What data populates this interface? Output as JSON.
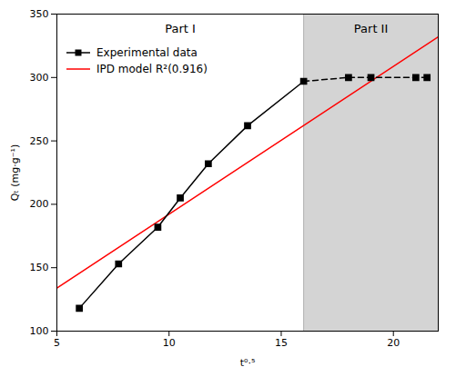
{
  "chart_data": {
    "type": "line",
    "xlabel": "t⁰·⁵",
    "ylabel": "Qₜ (mg·g⁻¹)",
    "xlim": [
      5,
      22
    ],
    "ylim": [
      100,
      350
    ],
    "xticks": [
      5,
      10,
      15,
      20
    ],
    "yticks": [
      100,
      150,
      200,
      250,
      300,
      350
    ],
    "grid": false,
    "legend": "upper left",
    "series": [
      {
        "name": "Experimental data",
        "color": "black",
        "marker": "square",
        "line_style": [
          "solid",
          "dashed"
        ],
        "x": [
          6,
          7.75,
          9.5,
          10.5,
          11.75,
          13.5,
          16,
          18,
          19,
          21,
          21.5
        ],
        "values": [
          118,
          153,
          182,
          205,
          232,
          262,
          297,
          300,
          300,
          300,
          300
        ]
      },
      {
        "name": "IPD model R²(0.916)",
        "color": "red",
        "line_style": "solid",
        "x": [
          5,
          22
        ],
        "values": [
          134,
          332
        ]
      }
    ],
    "regions": [
      {
        "x0": 5,
        "x1": 16,
        "color": "white",
        "label": "Part I",
        "label_x": 10.5,
        "label_y": 342
      },
      {
        "x0": 16,
        "x1": 22,
        "color": "#d4d4d4",
        "label": "Part II",
        "label_x": 19,
        "label_y": 342
      }
    ]
  }
}
